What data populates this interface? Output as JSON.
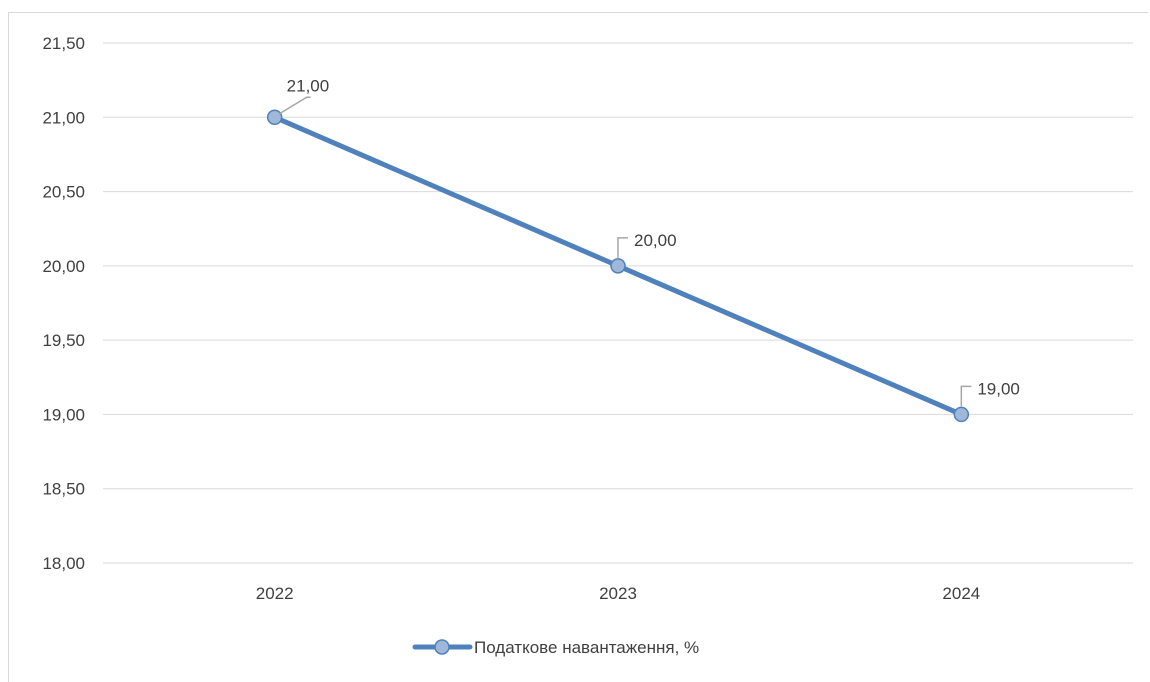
{
  "chart_data": {
    "type": "line",
    "categories": [
      "2022",
      "2023",
      "2024"
    ],
    "series": [
      {
        "name": "Податкове навантаження, %",
        "values": [
          21.0,
          20.0,
          19.0
        ],
        "data_labels": [
          "21,00",
          "20,00",
          "19,00"
        ]
      }
    ],
    "ylim": [
      18.0,
      21.5
    ],
    "ytick_labels": [
      "18,00",
      "18,50",
      "19,00",
      "19,50",
      "20,00",
      "20,50",
      "21,00",
      "21,50"
    ],
    "yticks": [
      18.0,
      18.5,
      19.0,
      19.5,
      20.0,
      20.5,
      21.0,
      21.5
    ],
    "grid": true,
    "legend_position": "bottom",
    "colors": {
      "line": "#4f81bd",
      "marker_fill": "#9fb8da",
      "marker_stroke": "#4f81bd",
      "grid": "#d9d9d9",
      "text": "#404040",
      "leader": "#a6a6a6"
    }
  }
}
